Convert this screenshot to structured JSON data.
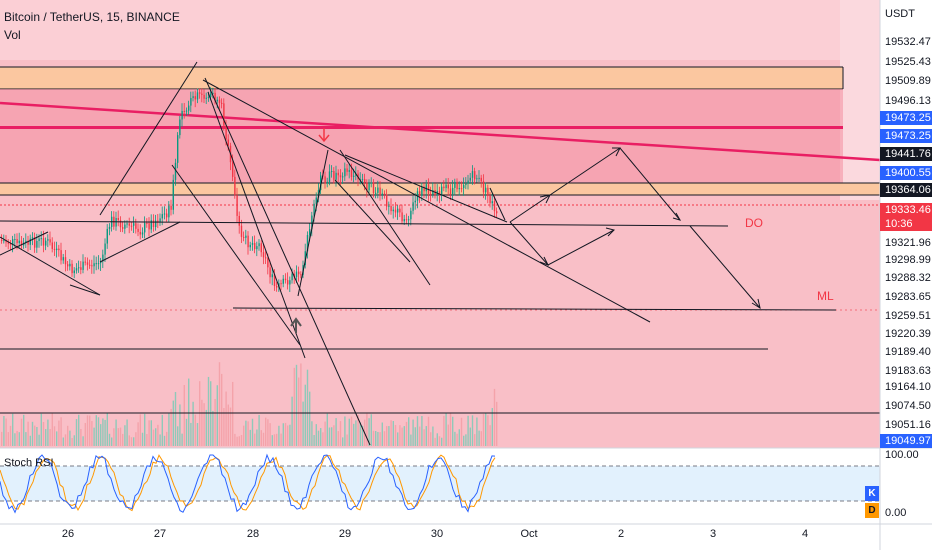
{
  "header": {
    "symbol_title": "Bitcoin / TetherUS, 15, BINANCE",
    "volume_label": "Vol"
  },
  "axis": {
    "currency": "USDT",
    "price_labels": [
      {
        "text": "19532.47",
        "style": "plain"
      },
      {
        "text": "19525.43",
        "style": "plain"
      },
      {
        "text": "19509.89",
        "style": "plain"
      },
      {
        "text": "19496.13",
        "style": "plain"
      },
      {
        "text": "19473.25",
        "style": "blue"
      },
      {
        "text": "19473.25",
        "style": "blue"
      },
      {
        "text": "19441.76",
        "style": "black"
      },
      {
        "text": "19400.55",
        "style": "blue"
      },
      {
        "text": "19364.06",
        "style": "black"
      },
      {
        "text": "19333.46",
        "style": "red"
      },
      {
        "text": "10:36",
        "style": "red"
      },
      {
        "text": "19321.96",
        "style": "plain"
      },
      {
        "text": "19298.99",
        "style": "plain"
      },
      {
        "text": "19288.32",
        "style": "plain"
      },
      {
        "text": "19283.65",
        "style": "plain"
      },
      {
        "text": "19259.51",
        "style": "plain"
      },
      {
        "text": "19220.39",
        "style": "plain"
      },
      {
        "text": "19189.40",
        "style": "plain"
      },
      {
        "text": "19183.63",
        "style": "plain"
      },
      {
        "text": "19164.10",
        "style": "plain"
      },
      {
        "text": "19074.50",
        "style": "plain"
      },
      {
        "text": "19051.16",
        "style": "plain"
      },
      {
        "text": "19049.97",
        "style": "blue"
      }
    ]
  },
  "annotations": {
    "do_label": "DO",
    "ml_label": "ML"
  },
  "indicator": {
    "name": "Stoch RSI",
    "upper_label": "100.00",
    "lower_label": "0.00",
    "k_label": "K",
    "d_label": "D",
    "k_color": "#2962ff",
    "d_color": "#ff9800"
  },
  "time_axis": {
    "labels": [
      "26",
      "27",
      "28",
      "29",
      "30",
      "Oct",
      "2",
      "3",
      "4"
    ]
  },
  "colors": {
    "zone_pink": "#f7a9b4",
    "zone_orange": "#fbc7a0",
    "trendline_red": "#e91e63",
    "candle_up": "#089981",
    "candle_down": "#f23645"
  },
  "chart_data": {
    "type": "candlestick",
    "ylim": [
      19049.97,
      19532.47
    ],
    "x": [
      "26",
      "27",
      "28",
      "29",
      "30",
      "Oct",
      "2",
      "3",
      "4"
    ]
  }
}
